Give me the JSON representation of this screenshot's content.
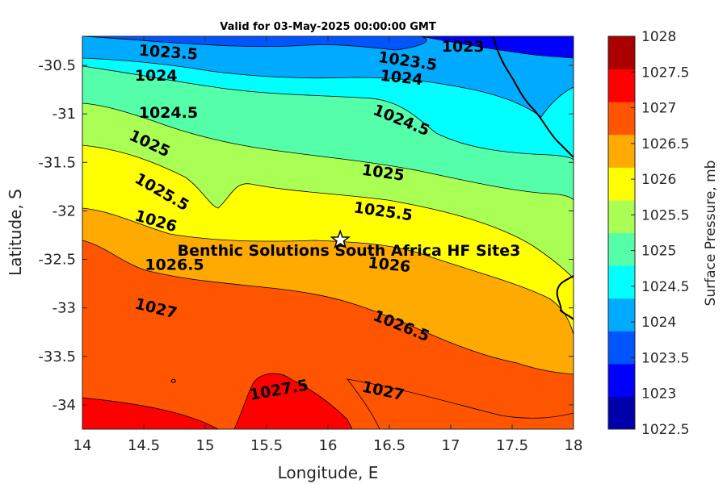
{
  "chart_data": {
    "type": "contour",
    "title": "Valid for 03-May-2025 00:00:00 GMT",
    "xlabel": "Longitude, E",
    "ylabel": "Latitude, S",
    "xlim": [
      14,
      18
    ],
    "ylim": [
      -34.25,
      -30.2
    ],
    "xticks": [
      "14",
      "14.5",
      "15",
      "15.5",
      "16",
      "16.5",
      "17",
      "17.5",
      "18"
    ],
    "yticks": [
      "-30.5",
      "-31",
      "-31.5",
      "-32",
      "-32.5",
      "-33",
      "-33.5",
      "-34"
    ],
    "colorbar": {
      "label": "Surface Pressure, mb",
      "levels": [
        "1022.5",
        "1023",
        "1023.5",
        "1024",
        "1024.5",
        "1025",
        "1025.5",
        "1026",
        "1026.5",
        "1027",
        "1027.5",
        "1028"
      ],
      "colors": [
        "#0000aa",
        "#0000ff",
        "#0055ff",
        "#00aaff",
        "#00ffff",
        "#55ffaa",
        "#aaff55",
        "#ffff00",
        "#ffaa00",
        "#ff5500",
        "#ff0000",
        "#aa0000"
      ]
    },
    "contour_labels": [
      {
        "text": "1023.5",
        "lon": 14.7,
        "lat": -30.36,
        "angle": 4
      },
      {
        "text": "1023.5",
        "lon": 16.65,
        "lat": -30.45,
        "angle": 8
      },
      {
        "text": "1023",
        "lon": 17.1,
        "lat": -30.3,
        "angle": 0
      },
      {
        "text": "1024",
        "lon": 14.6,
        "lat": -30.6,
        "angle": 0
      },
      {
        "text": "1024",
        "lon": 16.6,
        "lat": -30.62,
        "angle": 6
      },
      {
        "text": "1024.5",
        "lon": 14.7,
        "lat": -30.98,
        "angle": 0
      },
      {
        "text": "1024.5",
        "lon": 16.6,
        "lat": -31.06,
        "angle": 22
      },
      {
        "text": "1025",
        "lon": 14.55,
        "lat": -31.3,
        "angle": 25
      },
      {
        "text": "1025",
        "lon": 16.45,
        "lat": -31.6,
        "angle": 8
      },
      {
        "text": "1025.5",
        "lon": 14.65,
        "lat": -31.8,
        "angle": 30
      },
      {
        "text": "1025.5",
        "lon": 16.45,
        "lat": -32.0,
        "angle": 8
      },
      {
        "text": "1026",
        "lon": 14.6,
        "lat": -32.1,
        "angle": 16
      },
      {
        "text": "1026",
        "lon": 16.5,
        "lat": -32.55,
        "angle": 6
      },
      {
        "text": "1026.5",
        "lon": 14.75,
        "lat": -32.55,
        "angle": 0
      },
      {
        "text": "1026.5",
        "lon": 16.6,
        "lat": -33.18,
        "angle": 22
      },
      {
        "text": "1027",
        "lon": 14.6,
        "lat": -33.0,
        "angle": 14
      },
      {
        "text": "1027",
        "lon": 16.45,
        "lat": -33.85,
        "angle": 12
      },
      {
        "text": "1027.5",
        "lon": 15.6,
        "lat": -33.84,
        "angle": -10
      }
    ],
    "site": {
      "name": "Benthic Solutions South Africa HF Site3",
      "lon": 16.1,
      "lat": -32.3
    }
  }
}
